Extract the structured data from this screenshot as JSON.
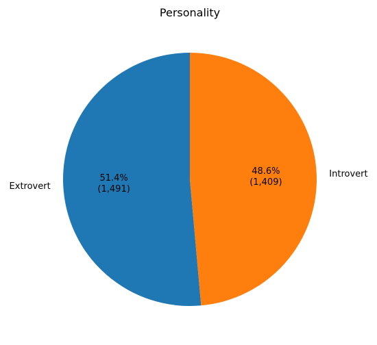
{
  "chart_data": {
    "type": "pie",
    "title": "Personality",
    "slices": [
      {
        "label": "Extrovert",
        "value": 1491,
        "percent_label": "51.4%",
        "count_label": "(1,491)",
        "color": "#1f77b4"
      },
      {
        "label": "Introvert",
        "value": 1409,
        "percent_label": "48.6%",
        "count_label": "(1,409)",
        "color": "#ff7f0e"
      }
    ],
    "start_angle": "top",
    "direction": "counterclockwise"
  }
}
